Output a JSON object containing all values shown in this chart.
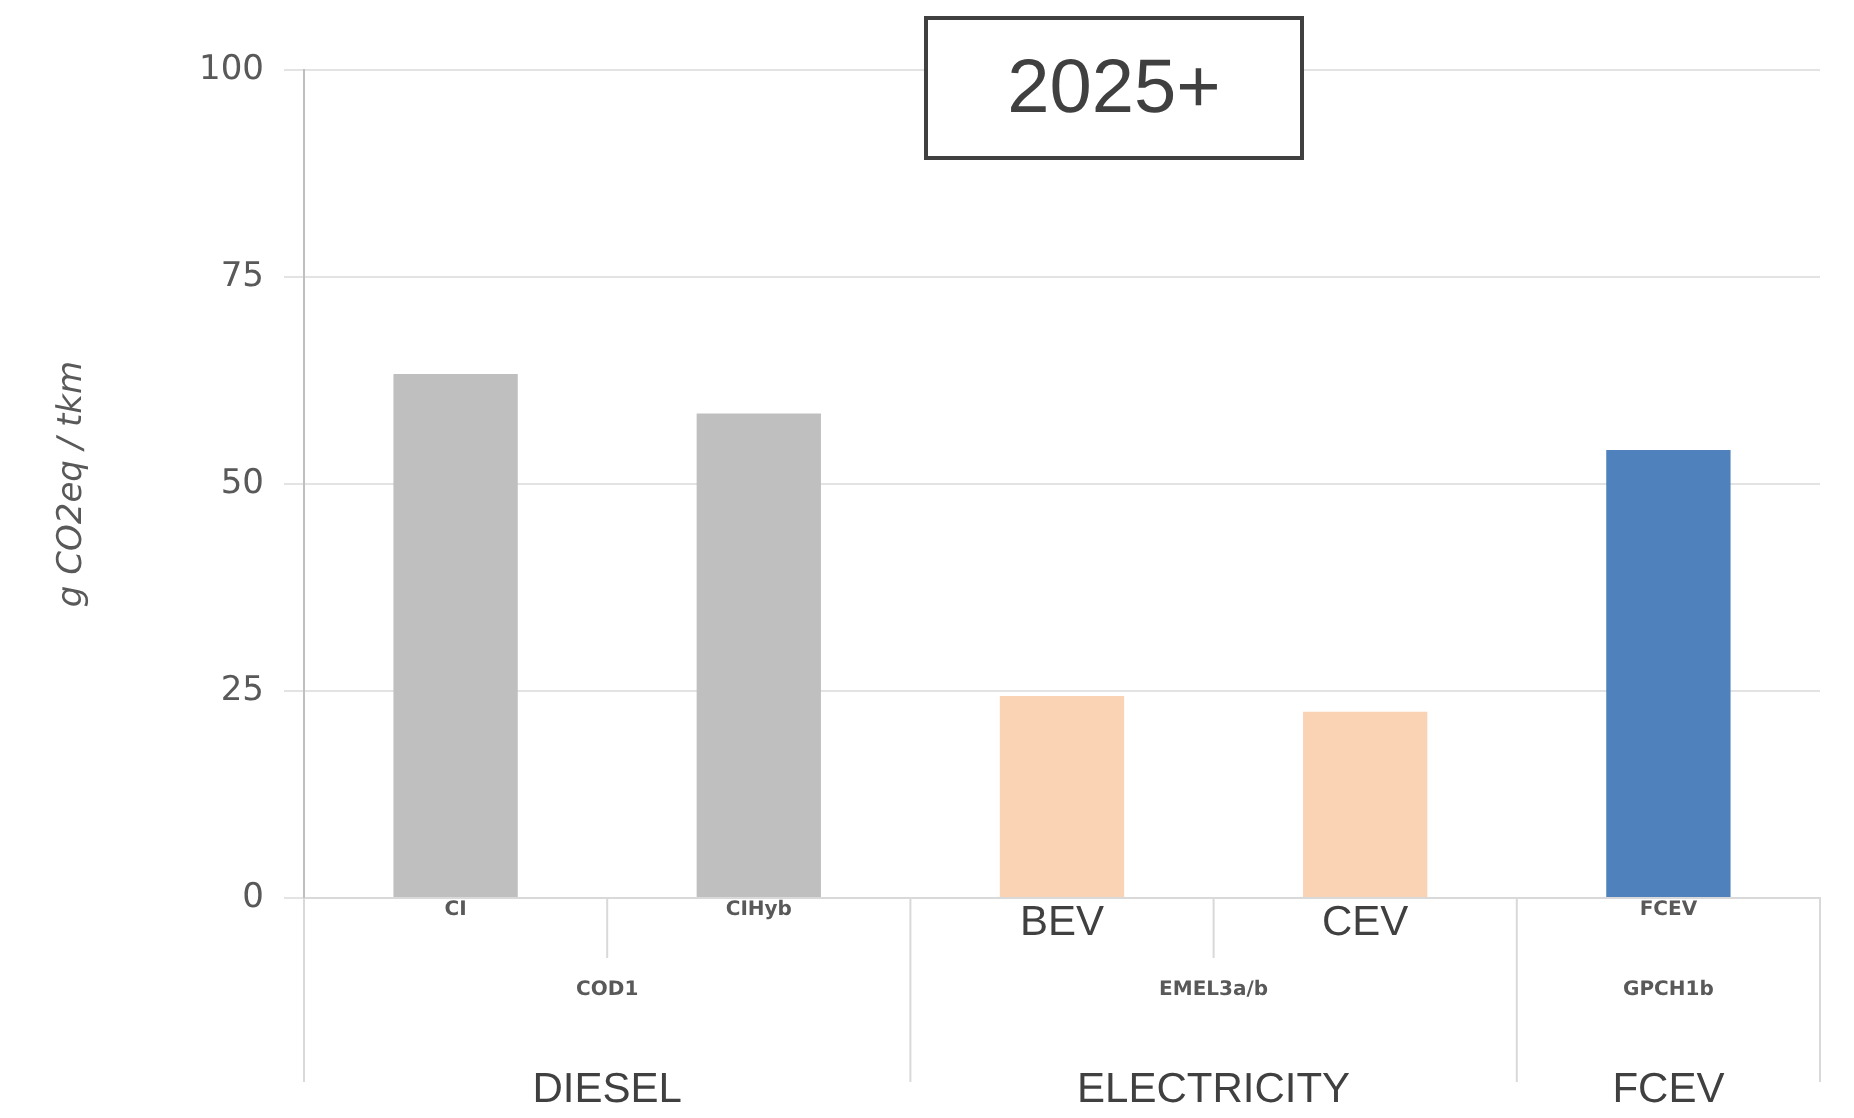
{
  "chart_data": {
    "type": "bar",
    "title": "2025+",
    "ylabel": "g CO2eq / tkm",
    "categories": [
      "CI",
      "CIHyb",
      "BEV",
      "CEV",
      "FCEV"
    ],
    "values": [
      63.3,
      58.5,
      24.4,
      22.5,
      54.1
    ],
    "colors": [
      "#bfbfbf",
      "#bfbfbf",
      "#f9d3b4",
      "#f9d3b4",
      "#4f81bd"
    ],
    "ylim": [
      0,
      100
    ],
    "yticks": [
      0,
      25,
      50,
      75,
      100
    ],
    "grid": "y",
    "legend": false,
    "annotations": [
      "COD1",
      "EMEL3a/b",
      "GPCH1b",
      "DIESEL",
      "ELECTRICITY",
      "FCEV"
    ]
  }
}
